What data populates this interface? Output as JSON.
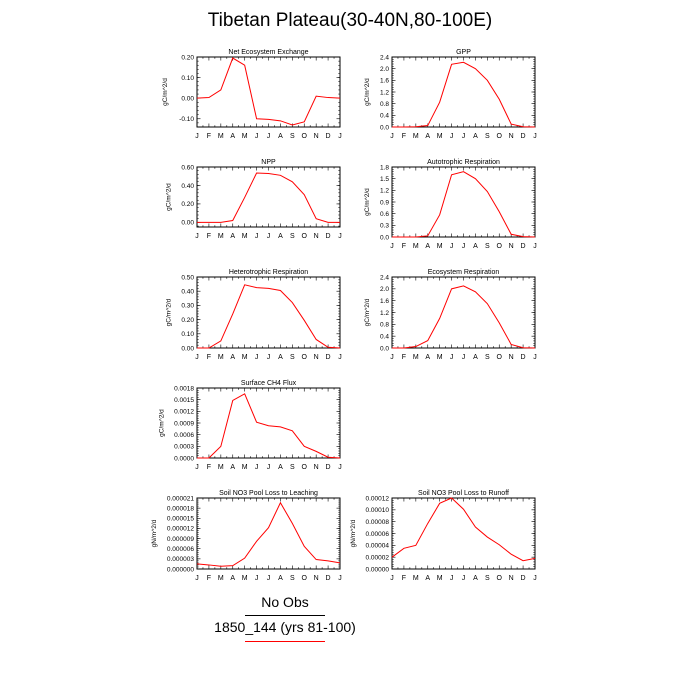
{
  "title": "Tibetan Plateau(30-40N,80-100E)",
  "months": [
    "J",
    "F",
    "M",
    "A",
    "M",
    "J",
    "J",
    "A",
    "S",
    "O",
    "N",
    "D",
    "J"
  ],
  "legend": {
    "obs_label": "No Obs",
    "obs_color": "#000000",
    "case_label": "1850_144 (yrs 81-100)",
    "case_color": "#ff0000"
  },
  "chart_data": [
    {
      "type": "line",
      "title": "Net Ecosystem Exchange",
      "ylabel": "gC/m^2/d",
      "ylim": [
        -0.14,
        0.2
      ],
      "yticks": [
        -0.1,
        0.0,
        0.1,
        0.2
      ],
      "ytick_labels": [
        "-0.10",
        "0.00",
        "0.10",
        "0.20"
      ],
      "series": [
        {
          "color": "#ff0000",
          "values": [
            0.0,
            0.003,
            0.04,
            0.195,
            0.16,
            -0.1,
            -0.103,
            -0.11,
            -0.13,
            -0.115,
            0.01,
            0.003,
            0.0
          ]
        }
      ]
    },
    {
      "type": "line",
      "title": "GPP",
      "ylabel": "gC/m^2/d",
      "ylim": [
        0,
        2.4
      ],
      "yticks": [
        0,
        0.4,
        0.8,
        1.2,
        1.6,
        2.0,
        2.4
      ],
      "ytick_labels": [
        "0.0",
        "0.4",
        "0.8",
        "1.2",
        "1.6",
        "2.0",
        "2.4"
      ],
      "series": [
        {
          "color": "#ff0000",
          "values": [
            0.0,
            0.0,
            0.01,
            0.05,
            0.85,
            2.15,
            2.22,
            2.0,
            1.6,
            0.95,
            0.1,
            0.01,
            0.0
          ]
        }
      ]
    },
    {
      "type": "line",
      "title": "NPP",
      "ylabel": "gC/m^2/d",
      "ylim": [
        -0.05,
        0.6
      ],
      "yticks": [
        0.0,
        0.2,
        0.4,
        0.6
      ],
      "ytick_labels": [
        "0.00",
        "0.20",
        "0.40",
        "0.60"
      ],
      "series": [
        {
          "color": "#ff0000",
          "values": [
            0.0,
            0.0,
            0.0,
            0.02,
            0.27,
            0.535,
            0.53,
            0.51,
            0.44,
            0.3,
            0.04,
            0.0,
            0.0
          ]
        }
      ]
    },
    {
      "type": "line",
      "title": "Autotrophic Respiration",
      "ylabel": "gC/m^2/d",
      "ylim": [
        0,
        1.8
      ],
      "yticks": [
        0,
        0.3,
        0.6,
        0.9,
        1.2,
        1.5,
        1.8
      ],
      "ytick_labels": [
        "0.0",
        "0.3",
        "0.6",
        "0.9",
        "1.2",
        "1.5",
        "1.8"
      ],
      "series": [
        {
          "color": "#ff0000",
          "values": [
            0.0,
            0.0,
            0.0,
            0.03,
            0.57,
            1.6,
            1.68,
            1.5,
            1.17,
            0.65,
            0.07,
            0.01,
            0.0
          ]
        }
      ]
    },
    {
      "type": "line",
      "title": "Heterotrophic Respiration",
      "ylabel": "gC/m^2/d",
      "ylim": [
        0,
        0.5
      ],
      "yticks": [
        0,
        0.1,
        0.2,
        0.3,
        0.4,
        0.5
      ],
      "ytick_labels": [
        "0.00",
        "0.10",
        "0.20",
        "0.30",
        "0.40",
        "0.50"
      ],
      "series": [
        {
          "color": "#ff0000",
          "values": [
            0.0,
            0.0,
            0.05,
            0.24,
            0.445,
            0.425,
            0.42,
            0.405,
            0.32,
            0.195,
            0.06,
            0.005,
            0.0
          ]
        }
      ]
    },
    {
      "type": "line",
      "title": "Ecosystem Respiration",
      "ylabel": "gC/m^2/d",
      "ylim": [
        0,
        2.4
      ],
      "yticks": [
        0,
        0.4,
        0.8,
        1.2,
        1.6,
        2.0,
        2.4
      ],
      "ytick_labels": [
        "0.0",
        "0.4",
        "0.8",
        "1.2",
        "1.6",
        "2.0",
        "2.4"
      ],
      "series": [
        {
          "color": "#ff0000",
          "values": [
            0.0,
            0.0,
            0.05,
            0.25,
            1.0,
            2.0,
            2.1,
            1.9,
            1.5,
            0.85,
            0.12,
            0.01,
            0.0
          ]
        }
      ]
    },
    {
      "type": "line",
      "title": "Surface CH4 Flux",
      "ylabel": "gC/m^2/d",
      "ylim": [
        0,
        0.0018
      ],
      "yticks": [
        0,
        0.0003,
        0.0006,
        0.0009,
        0.0012,
        0.0015,
        0.0018
      ],
      "ytick_labels": [
        "0.0000",
        "0.0003",
        "0.0006",
        "0.0009",
        "0.0012",
        "0.0015",
        "0.0018"
      ],
      "series": [
        {
          "color": "#ff0000",
          "values": [
            0.0,
            0.0,
            0.0003,
            0.00148,
            0.00165,
            0.00092,
            0.00083,
            0.0008,
            0.0007,
            0.0003,
            0.00017,
            2e-05,
            0.0
          ]
        }
      ]
    },
    {
      "type": "line",
      "title": "Soil NO3 Pool Loss to Leaching",
      "ylabel": "gN/m^2/d",
      "ylim": [
        0,
        2.1e-05
      ],
      "yticks": [
        0,
        3e-06,
        6e-06,
        9e-06,
        1.2e-05,
        1.5e-05,
        1.8e-05,
        2.1e-05
      ],
      "ytick_labels": [
        "0.000000",
        "0.000003",
        "0.000006",
        "0.000009",
        "0.000012",
        "0.000015",
        "0.000018",
        "0.000021"
      ],
      "series": [
        {
          "color": "#ff0000",
          "values": [
            1.5e-06,
            1.2e-06,
            8e-07,
            1e-06,
            3.2e-06,
            8.2e-06,
            1.22e-05,
            1.96e-05,
            1.35e-05,
            6.7e-06,
            2.8e-06,
            2.4e-06,
            1.8e-06
          ]
        }
      ]
    },
    {
      "type": "line",
      "title": "Soil NO3 Pool Loss to Runoff",
      "ylabel": "gN/m^2/d",
      "ylim": [
        0,
        0.00012
      ],
      "yticks": [
        0,
        2e-05,
        4e-05,
        6e-05,
        8e-05,
        0.0001,
        0.00012
      ],
      "ytick_labels": [
        "0.00000",
        "0.00002",
        "0.00004",
        "0.00006",
        "0.00008",
        "0.00010",
        "0.00012"
      ],
      "series": [
        {
          "color": "#ff0000",
          "values": [
            2e-05,
            3.5e-05,
            4e-05,
            7.7e-05,
            0.000111,
            0.00012,
            0.000101,
            7.1e-05,
            5.4e-05,
            4.1e-05,
            2.5e-05,
            1.4e-05,
            1.8e-05
          ]
        }
      ]
    }
  ]
}
